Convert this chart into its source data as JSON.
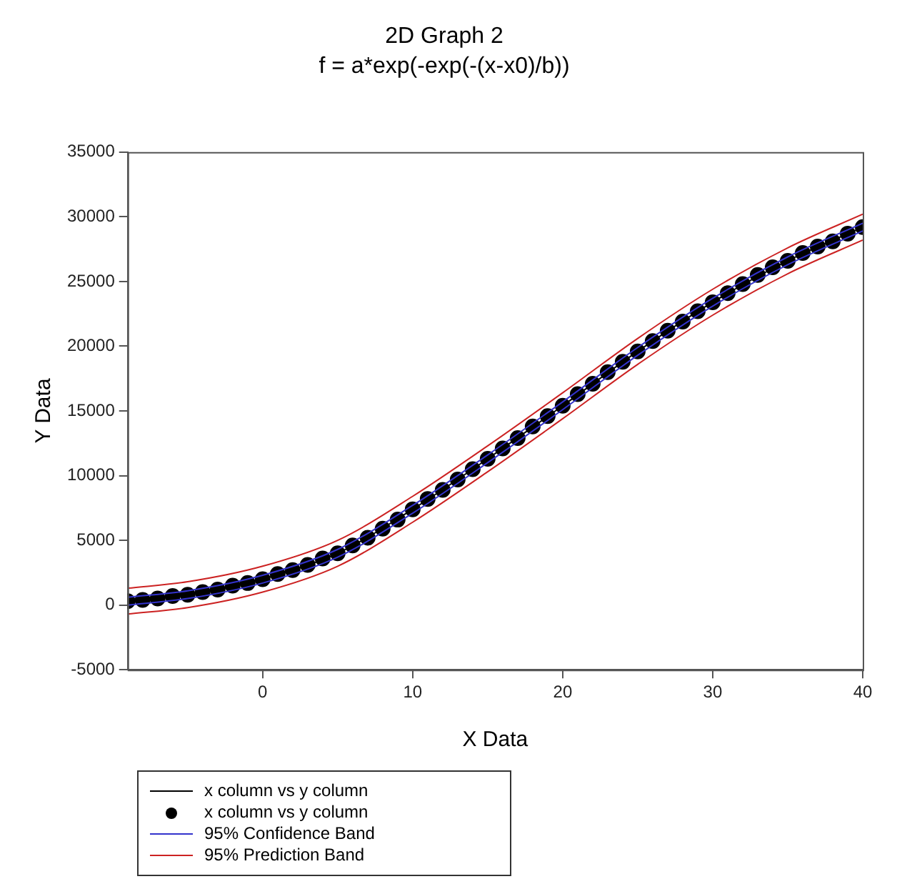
{
  "chart_data": {
    "type": "line",
    "title": "2D Graph 2",
    "subtitle": "f = a*exp(-exp(-(x-x0)/b))",
    "xlabel": "X Data",
    "ylabel": "Y Data",
    "xlim": [
      -9,
      40
    ],
    "xticks": [
      0,
      10,
      20,
      30,
      40
    ],
    "ylim": [
      -5000,
      35000
    ],
    "yticks": [
      -5000,
      0,
      5000,
      10000,
      15000,
      20000,
      25000,
      30000,
      35000
    ],
    "grid": false,
    "legend": "bottom",
    "line_style": "solid",
    "series": [
      {
        "name": "x column vs y column",
        "color": "#000000",
        "x": [
          -9,
          -5,
          0,
          5,
          10,
          15,
          20,
          25,
          30,
          35,
          40
        ],
        "values": [
          300,
          800,
          2000,
          4000,
          7400,
          11300,
          15400,
          19600,
          23400,
          26600,
          29200
        ]
      },
      {
        "name": "x column vs y column",
        "type": "scatter",
        "marker": "circle",
        "color": "#000000",
        "x": [
          -9,
          -8,
          -7,
          -6,
          -5,
          -4,
          -3,
          -2,
          -1,
          0,
          1,
          2,
          3,
          4,
          5,
          6,
          7,
          8,
          9,
          10,
          11,
          12,
          13,
          14,
          15,
          16,
          17,
          18,
          19,
          20,
          21,
          22,
          23,
          24,
          25,
          26,
          27,
          28,
          29,
          30,
          31,
          32,
          33,
          34,
          35,
          36,
          37,
          38,
          39,
          40
        ],
        "values": [
          300,
          400,
          500,
          700,
          800,
          1000,
          1200,
          1500,
          1700,
          2000,
          2400,
          2700,
          3100,
          3600,
          4000,
          4600,
          5200,
          5900,
          6600,
          7400,
          8200,
          8900,
          9700,
          10500,
          11300,
          12100,
          12900,
          13800,
          14600,
          15400,
          16300,
          17100,
          18000,
          18800,
          19600,
          20400,
          21200,
          21900,
          22700,
          23400,
          24100,
          24800,
          25500,
          26100,
          26600,
          27200,
          27700,
          28100,
          28700,
          29200
        ]
      },
      {
        "name": "95% Confidence Band",
        "color": "#3333cc",
        "x": [
          -9,
          -5,
          0,
          5,
          10,
          15,
          20,
          25,
          30,
          35,
          40
        ],
        "values": [
          600,
          1100,
          2300,
          4300,
          7700,
          11600,
          15700,
          19900,
          23700,
          26900,
          29500
        ]
      },
      {
        "color": "#3333cc",
        "x": [
          -9,
          -5,
          0,
          5,
          10,
          15,
          20,
          25,
          30,
          35,
          40
        ],
        "values": [
          0,
          500,
          1700,
          3700,
          7100,
          11000,
          15100,
          19300,
          23100,
          26300,
          28900
        ]
      },
      {
        "name": "95% Prediction Band",
        "color": "#cc2222",
        "x": [
          -9,
          -5,
          0,
          5,
          10,
          15,
          20,
          25,
          30,
          35,
          40
        ],
        "values": [
          1300,
          1800,
          3000,
          5000,
          8400,
          12300,
          16400,
          20600,
          24400,
          27600,
          30200
        ]
      },
      {
        "color": "#cc2222",
        "x": [
          -9,
          -5,
          0,
          5,
          10,
          15,
          20,
          25,
          30,
          35,
          40
        ],
        "values": [
          -700,
          -200,
          1000,
          3000,
          6400,
          10300,
          14400,
          18600,
          22400,
          25600,
          28200
        ]
      }
    ]
  }
}
